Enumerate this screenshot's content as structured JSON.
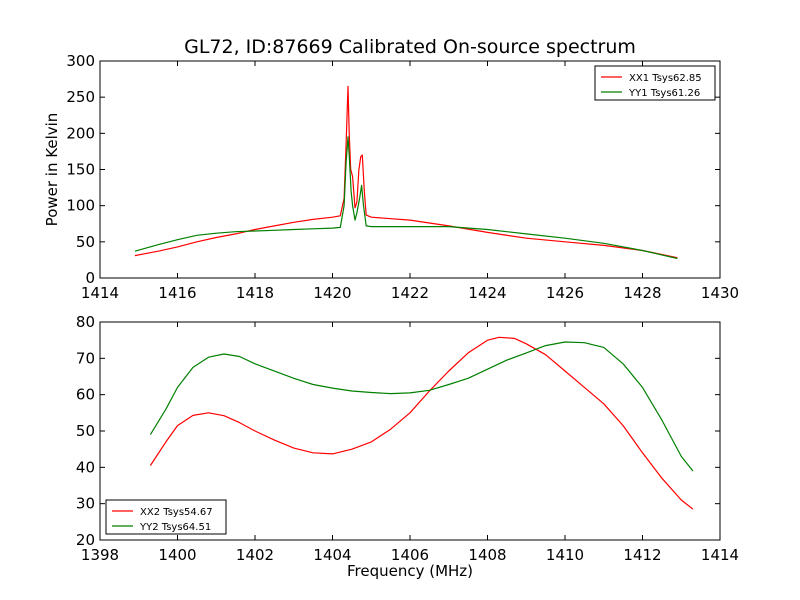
{
  "title": "GL72, ID:87669 Calibrated On-source spectrum",
  "chart_data": [
    {
      "type": "line",
      "ylabel": "Power in Kelvin",
      "xlabel": "",
      "xlim": [
        1414,
        1430
      ],
      "ylim": [
        0,
        300
      ],
      "xticks": [
        "1414",
        "1416",
        "1418",
        "1420",
        "1422",
        "1424",
        "1426",
        "1428",
        "1430"
      ],
      "yticks": [
        "0",
        "50",
        "100",
        "150",
        "200",
        "250",
        "300"
      ],
      "legend": "top-right",
      "series": [
        {
          "name": "XX1 Tsys62.85",
          "color": "#ff0000",
          "points": [
            [
              1414.9,
              31
            ],
            [
              1415.5,
              37
            ],
            [
              1416,
              43
            ],
            [
              1416.5,
              50
            ],
            [
              1417,
              56
            ],
            [
              1417.5,
              61
            ],
            [
              1418,
              67
            ],
            [
              1418.5,
              72
            ],
            [
              1419,
              77
            ],
            [
              1419.5,
              81
            ],
            [
              1420,
              84
            ],
            [
              1420.2,
              86
            ],
            [
              1420.3,
              110
            ],
            [
              1420.35,
              185
            ],
            [
              1420.4,
              265
            ],
            [
              1420.43,
              200
            ],
            [
              1420.47,
              150
            ],
            [
              1420.52,
              140
            ],
            [
              1420.58,
              97
            ],
            [
              1420.63,
              105
            ],
            [
              1420.68,
              150
            ],
            [
              1420.73,
              168
            ],
            [
              1420.77,
              170
            ],
            [
              1420.82,
              120
            ],
            [
              1420.87,
              87
            ],
            [
              1421,
              84
            ],
            [
              1422,
              80
            ],
            [
              1423,
              72
            ],
            [
              1424,
              63
            ],
            [
              1425,
              55
            ],
            [
              1426,
              50
            ],
            [
              1427,
              45
            ],
            [
              1428,
              38
            ],
            [
              1428.9,
              28
            ]
          ]
        },
        {
          "name": "YY1 Tsys61.26",
          "color": "#008000",
          "points": [
            [
              1414.9,
              37
            ],
            [
              1415.5,
              46
            ],
            [
              1416,
              53
            ],
            [
              1416.5,
              59
            ],
            [
              1417,
              62
            ],
            [
              1417.5,
              64
            ],
            [
              1418,
              65
            ],
            [
              1418.5,
              66
            ],
            [
              1419,
              67
            ],
            [
              1419.5,
              68
            ],
            [
              1420,
              69
            ],
            [
              1420.2,
              70
            ],
            [
              1420.3,
              100
            ],
            [
              1420.35,
              160
            ],
            [
              1420.4,
              195
            ],
            [
              1420.43,
              170
            ],
            [
              1420.48,
              120
            ],
            [
              1420.52,
              100
            ],
            [
              1420.58,
              80
            ],
            [
              1420.63,
              90
            ],
            [
              1420.7,
              110
            ],
            [
              1420.75,
              128
            ],
            [
              1420.8,
              100
            ],
            [
              1420.87,
              72
            ],
            [
              1421,
              71
            ],
            [
              1422,
              71
            ],
            [
              1423,
              71
            ],
            [
              1424,
              67
            ],
            [
              1425,
              61
            ],
            [
              1426,
              55
            ],
            [
              1427,
              48
            ],
            [
              1428,
              38
            ],
            [
              1428.9,
              27
            ]
          ]
        }
      ]
    },
    {
      "type": "line",
      "xlabel": "Frequency (MHz)",
      "ylabel": "",
      "xlim": [
        1398,
        1414
      ],
      "ylim": [
        20,
        80
      ],
      "xticks": [
        "1398",
        "1400",
        "1402",
        "1404",
        "1406",
        "1408",
        "1410",
        "1412",
        "1414"
      ],
      "yticks": [
        "20",
        "30",
        "40",
        "50",
        "60",
        "70",
        "80"
      ],
      "legend": "bottom-left",
      "series": [
        {
          "name": "XX2 Tsys54.67",
          "color": "#ff0000",
          "points": [
            [
              1399.3,
              40.5
            ],
            [
              1399.7,
              47
            ],
            [
              1400,
              51.5
            ],
            [
              1400.4,
              54.3
            ],
            [
              1400.8,
              55
            ],
            [
              1401.2,
              54.2
            ],
            [
              1401.6,
              52.3
            ],
            [
              1402,
              50
            ],
            [
              1402.5,
              47.5
            ],
            [
              1403,
              45.3
            ],
            [
              1403.5,
              44
            ],
            [
              1404,
              43.7
            ],
            [
              1404.5,
              45
            ],
            [
              1405,
              47
            ],
            [
              1405.5,
              50.5
            ],
            [
              1406,
              55
            ],
            [
              1406.5,
              61
            ],
            [
              1407,
              66.5
            ],
            [
              1407.5,
              71.5
            ],
            [
              1408,
              75
            ],
            [
              1408.3,
              75.8
            ],
            [
              1408.7,
              75.5
            ],
            [
              1409,
              74
            ],
            [
              1409.5,
              71
            ],
            [
              1410,
              66.5
            ],
            [
              1410.5,
              62
            ],
            [
              1411,
              57.5
            ],
            [
              1411.5,
              51.5
            ],
            [
              1412,
              44
            ],
            [
              1412.5,
              37
            ],
            [
              1413,
              31
            ],
            [
              1413.3,
              28.5
            ]
          ]
        },
        {
          "name": "YY2 Tsys64.51",
          "color": "#008000",
          "points": [
            [
              1399.3,
              49
            ],
            [
              1399.7,
              56
            ],
            [
              1400,
              62
            ],
            [
              1400.4,
              67.5
            ],
            [
              1400.8,
              70.3
            ],
            [
              1401.2,
              71.2
            ],
            [
              1401.6,
              70.5
            ],
            [
              1402,
              68.5
            ],
            [
              1402.5,
              66.5
            ],
            [
              1403,
              64.5
            ],
            [
              1403.5,
              62.8
            ],
            [
              1404,
              61.8
            ],
            [
              1404.5,
              61
            ],
            [
              1405,
              60.6
            ],
            [
              1405.5,
              60.3
            ],
            [
              1406,
              60.5
            ],
            [
              1406.5,
              61.2
            ],
            [
              1407,
              62.8
            ],
            [
              1407.5,
              64.5
            ],
            [
              1408,
              67
            ],
            [
              1408.5,
              69.5
            ],
            [
              1409,
              71.5
            ],
            [
              1409.5,
              73.5
            ],
            [
              1410,
              74.5
            ],
            [
              1410.5,
              74.3
            ],
            [
              1411,
              73
            ],
            [
              1411.5,
              68.5
            ],
            [
              1412,
              62
            ],
            [
              1412.5,
              53
            ],
            [
              1413,
              43
            ],
            [
              1413.3,
              39
            ]
          ]
        }
      ]
    }
  ]
}
